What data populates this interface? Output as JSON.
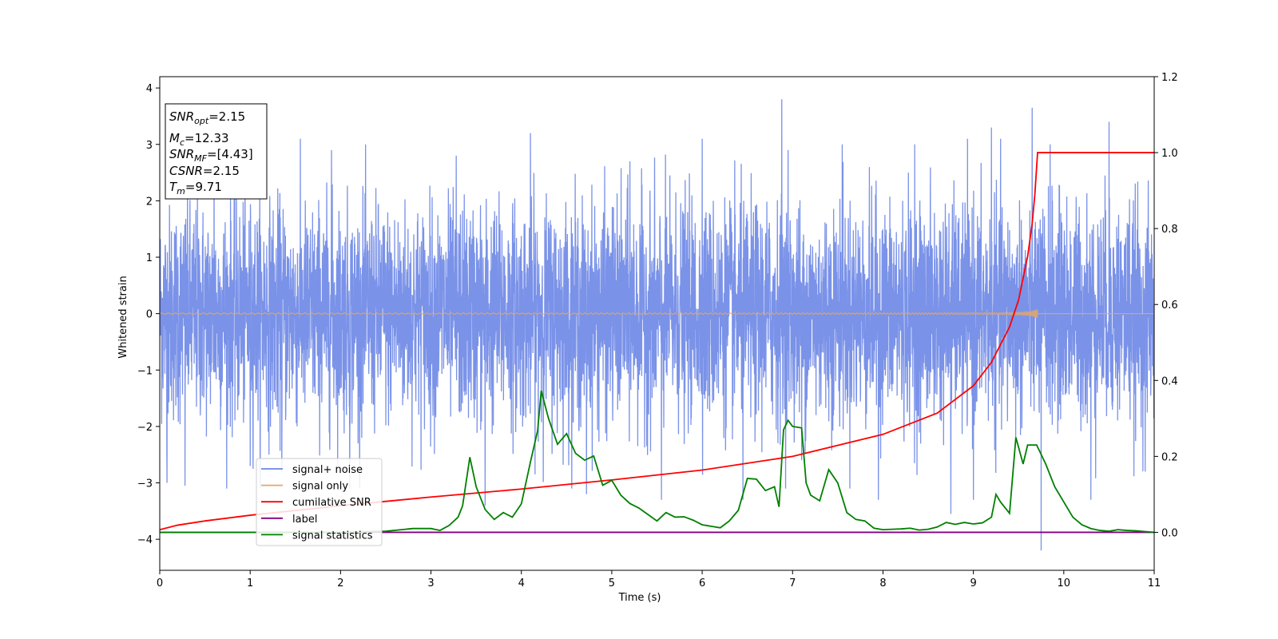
{
  "chart_data": {
    "type": "line",
    "xlabel": "Time (s)",
    "ylabel": "Whitened strain",
    "xlim": [
      0,
      11
    ],
    "ylim_left": [
      -4.55,
      4.2
    ],
    "ylim_right": [
      -0.1,
      1.2
    ],
    "x_ticks": [
      "0",
      "1",
      "2",
      "3",
      "4",
      "5",
      "6",
      "7",
      "8",
      "9",
      "10",
      "11"
    ],
    "y_ticks_left": [
      {
        "value": 4,
        "label": "4"
      },
      {
        "value": 3,
        "label": "3"
      },
      {
        "value": 2,
        "label": "2"
      },
      {
        "value": 1,
        "label": "1"
      },
      {
        "value": 0,
        "label": "0"
      },
      {
        "value": -1,
        "label": "−1"
      },
      {
        "value": -2,
        "label": "−2"
      },
      {
        "value": -3,
        "label": "−3"
      },
      {
        "value": -4,
        "label": "−4"
      }
    ],
    "y_ticks_right": [
      {
        "value": 1.2,
        "label": "1.2"
      },
      {
        "value": 1.0,
        "label": "1.0"
      },
      {
        "value": 0.8,
        "label": "0.8"
      },
      {
        "value": 0.6,
        "label": "0.6"
      },
      {
        "value": 0.4,
        "label": "0.4"
      },
      {
        "value": 0.2,
        "label": "0.2"
      },
      {
        "value": 0.0,
        "label": "0.0"
      }
    ],
    "legend_position": "lower-left",
    "info_box": [
      {
        "base": "SNR",
        "sub": "opt",
        "value": "=2.15"
      },
      {
        "base": "M",
        "sub": "c",
        "value": "=12.33"
      },
      {
        "base": "SNR",
        "sub": "MF",
        "value": "=[4.43]"
      },
      {
        "base": "CSNR",
        "sub": "",
        "value": "=2.15"
      },
      {
        "base": "T",
        "sub": "m",
        "value": "=9.71"
      }
    ],
    "series": [
      {
        "name": "signal+ noise",
        "color": "#6b86e6",
        "axis": "left",
        "style": "noise",
        "t_end": 11,
        "spikes": [
          [
            0.08,
            -3.0
          ],
          [
            0.28,
            -3.05
          ],
          [
            0.6,
            3.2
          ],
          [
            1.0,
            -2.7
          ],
          [
            1.35,
            -2.8
          ],
          [
            1.9,
            2.9
          ],
          [
            2.1,
            -3.1
          ],
          [
            3.28,
            2.8
          ],
          [
            3.6,
            -3.4
          ],
          [
            4.1,
            3.2
          ],
          [
            4.72,
            -3.2
          ],
          [
            5.2,
            2.7
          ],
          [
            5.55,
            -3.3
          ],
          [
            6.0,
            3.1
          ],
          [
            6.45,
            -3.3
          ],
          [
            6.88,
            3.8
          ],
          [
            6.95,
            2.9
          ],
          [
            7.1,
            -2.6
          ],
          [
            7.55,
            3.0
          ],
          [
            7.95,
            -3.3
          ],
          [
            8.35,
            3.0
          ],
          [
            8.75,
            -3.55
          ],
          [
            9.0,
            -3.3
          ],
          [
            9.2,
            3.3
          ],
          [
            9.65,
            3.65
          ],
          [
            9.75,
            -4.2
          ],
          [
            9.85,
            3.0
          ],
          [
            10.3,
            -3.3
          ],
          [
            10.5,
            3.4
          ],
          [
            10.9,
            -2.8
          ]
        ]
      },
      {
        "name": "signal only",
        "color": "#e4a865",
        "axis": "left",
        "style": "chirp",
        "t_end": 9.71,
        "amplitude_start": 0.01,
        "amplitude_end": 0.38
      },
      {
        "name": "cumilative SNR",
        "color": "#ff0000",
        "axis": "right",
        "points": [
          [
            0,
            0.007
          ],
          [
            0.2,
            0.019
          ],
          [
            0.5,
            0.03
          ],
          [
            1,
            0.045
          ],
          [
            2,
            0.07
          ],
          [
            3,
            0.093
          ],
          [
            4,
            0.114
          ],
          [
            5,
            0.138
          ],
          [
            6,
            0.164
          ],
          [
            7,
            0.2
          ],
          [
            8,
            0.258
          ],
          [
            8.6,
            0.314
          ],
          [
            9.0,
            0.386
          ],
          [
            9.2,
            0.448
          ],
          [
            9.4,
            0.541
          ],
          [
            9.5,
            0.612
          ],
          [
            9.6,
            0.727
          ],
          [
            9.65,
            0.812
          ],
          [
            9.68,
            0.89
          ],
          [
            9.71,
            1.0
          ],
          [
            11,
            1.0
          ]
        ]
      },
      {
        "name": "label",
        "color": "#800080",
        "axis": "right",
        "points": [
          [
            0,
            0.0
          ],
          [
            11,
            0.0
          ]
        ]
      },
      {
        "name": "signal statistics",
        "color": "#008000",
        "axis": "right",
        "points": [
          [
            0,
            0.0
          ],
          [
            0.5,
            0.0
          ],
          [
            1,
            0.0
          ],
          [
            1.5,
            0.0
          ],
          [
            2,
            0.0
          ],
          [
            2.5,
            0.003
          ],
          [
            2.8,
            0.01
          ],
          [
            3.0,
            0.01
          ],
          [
            3.1,
            0.005
          ],
          [
            3.2,
            0.018
          ],
          [
            3.3,
            0.04
          ],
          [
            3.35,
            0.07
          ],
          [
            3.43,
            0.198
          ],
          [
            3.5,
            0.12
          ],
          [
            3.6,
            0.06
          ],
          [
            3.7,
            0.034
          ],
          [
            3.8,
            0.052
          ],
          [
            3.9,
            0.04
          ],
          [
            4.0,
            0.075
          ],
          [
            4.1,
            0.185
          ],
          [
            4.18,
            0.268
          ],
          [
            4.22,
            0.373
          ],
          [
            4.3,
            0.3
          ],
          [
            4.4,
            0.232
          ],
          [
            4.5,
            0.26
          ],
          [
            4.6,
            0.208
          ],
          [
            4.7,
            0.19
          ],
          [
            4.8,
            0.201
          ],
          [
            4.9,
            0.124
          ],
          [
            5.0,
            0.137
          ],
          [
            5.1,
            0.098
          ],
          [
            5.2,
            0.076
          ],
          [
            5.3,
            0.064
          ],
          [
            5.4,
            0.047
          ],
          [
            5.5,
            0.03
          ],
          [
            5.6,
            0.052
          ],
          [
            5.7,
            0.04
          ],
          [
            5.8,
            0.041
          ],
          [
            5.9,
            0.032
          ],
          [
            6.0,
            0.02
          ],
          [
            6.1,
            0.016
          ],
          [
            6.2,
            0.012
          ],
          [
            6.3,
            0.03
          ],
          [
            6.4,
            0.058
          ],
          [
            6.5,
            0.142
          ],
          [
            6.55,
            0.141
          ],
          [
            6.6,
            0.14
          ],
          [
            6.7,
            0.11
          ],
          [
            6.8,
            0.12
          ],
          [
            6.85,
            0.067
          ],
          [
            6.9,
            0.27
          ],
          [
            6.95,
            0.295
          ],
          [
            7.0,
            0.279
          ],
          [
            7.1,
            0.275
          ],
          [
            7.15,
            0.13
          ],
          [
            7.2,
            0.098
          ],
          [
            7.3,
            0.083
          ],
          [
            7.4,
            0.165
          ],
          [
            7.5,
            0.13
          ],
          [
            7.6,
            0.052
          ],
          [
            7.7,
            0.034
          ],
          [
            7.8,
            0.03
          ],
          [
            7.9,
            0.011
          ],
          [
            8.0,
            0.007
          ],
          [
            8.1,
            0.008
          ],
          [
            8.2,
            0.009
          ],
          [
            8.3,
            0.011
          ],
          [
            8.4,
            0.006
          ],
          [
            8.5,
            0.008
          ],
          [
            8.6,
            0.014
          ],
          [
            8.7,
            0.026
          ],
          [
            8.8,
            0.021
          ],
          [
            8.9,
            0.026
          ],
          [
            9.0,
            0.022
          ],
          [
            9.1,
            0.025
          ],
          [
            9.2,
            0.04
          ],
          [
            9.25,
            0.1
          ],
          [
            9.3,
            0.08
          ],
          [
            9.4,
            0.05
          ],
          [
            9.47,
            0.25
          ],
          [
            9.55,
            0.18
          ],
          [
            9.6,
            0.23
          ],
          [
            9.7,
            0.23
          ],
          [
            9.8,
            0.18
          ],
          [
            9.9,
            0.12
          ],
          [
            10.0,
            0.08
          ],
          [
            10.1,
            0.04
          ],
          [
            10.2,
            0.02
          ],
          [
            10.3,
            0.01
          ],
          [
            10.4,
            0.005
          ],
          [
            10.5,
            0.003
          ],
          [
            10.6,
            0.007
          ],
          [
            10.7,
            0.005
          ],
          [
            10.8,
            0.004
          ],
          [
            10.9,
            0.002
          ],
          [
            11.0,
            0.0
          ]
        ]
      }
    ]
  }
}
